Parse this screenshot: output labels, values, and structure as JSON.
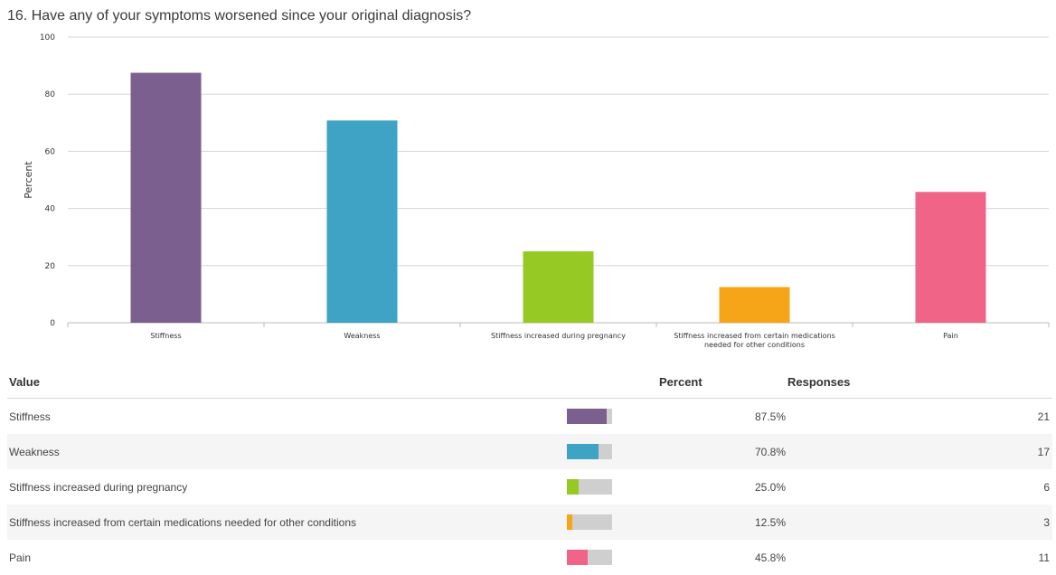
{
  "question_title": "16. Have any of your symptoms worsened since your original diagnosis?",
  "chart_data": {
    "type": "bar",
    "ylabel": "Percent",
    "xlabel": "",
    "ylim": [
      0,
      100
    ],
    "yticks": [
      0,
      20,
      40,
      60,
      80,
      100
    ],
    "grid": true,
    "categories": [
      "Stiffness",
      "Weakness",
      "Stiffness increased during pregnancy",
      "Stiffness increased from certain medications needed for other conditions",
      "Pain"
    ],
    "category_label_lines": [
      [
        "Stiffness"
      ],
      [
        "Weakness"
      ],
      [
        "Stiffness increased during pregnancy"
      ],
      [
        "Stiffness increased from certain medications",
        "needed for other conditions"
      ],
      [
        "Pain"
      ]
    ],
    "values": [
      87.5,
      70.8,
      25.0,
      12.5,
      45.8
    ],
    "colors": [
      "#7b5f8f",
      "#3ea3c4",
      "#97c924",
      "#f5a517",
      "#ef6487"
    ]
  },
  "table": {
    "headers": {
      "value": "Value",
      "percent": "Percent",
      "responses": "Responses"
    },
    "rows": [
      {
        "value": "Stiffness",
        "percent": "87.5%",
        "responses": "21",
        "fraction": 0.875,
        "color": "#7b5f8f"
      },
      {
        "value": "Weakness",
        "percent": "70.8%",
        "responses": "17",
        "fraction": 0.708,
        "color": "#3ea3c4"
      },
      {
        "value": "Stiffness increased during pregnancy",
        "percent": "25.0%",
        "responses": "6",
        "fraction": 0.25,
        "color": "#97c924"
      },
      {
        "value": "Stiffness increased from certain medications needed for other conditions",
        "percent": "12.5%",
        "responses": "3",
        "fraction": 0.125,
        "color": "#f5a517"
      },
      {
        "value": "Pain",
        "percent": "45.8%",
        "responses": "11",
        "fraction": 0.458,
        "color": "#ef6487"
      }
    ]
  }
}
